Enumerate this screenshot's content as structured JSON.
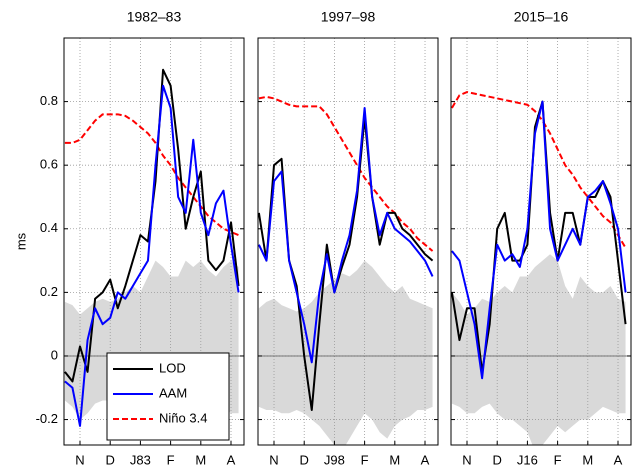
{
  "chart_data": [
    {
      "type": "line",
      "title": "1982–83",
      "ylabel": "ms",
      "x": [
        0.5,
        0.75,
        1,
        1.25,
        1.5,
        1.75,
        2,
        2.25,
        2.5,
        2.75,
        3,
        3.25,
        3.5,
        3.75,
        4,
        4.25,
        4.5,
        4.75,
        5,
        5.25,
        5.5,
        5.75,
        6,
        6.25
      ],
      "xlim": [
        0.47,
        6.43
      ],
      "xticks": [
        {
          "value": 1,
          "label": "N"
        },
        {
          "value": 2,
          "label": "D"
        },
        {
          "value": 3,
          "label": "J83"
        },
        {
          "value": 4,
          "label": "F"
        },
        {
          "value": 5,
          "label": "M"
        },
        {
          "value": 6,
          "label": "A"
        }
      ],
      "ylim": [
        -0.28,
        1.0
      ],
      "yticks": [
        -0.2,
        0,
        0.2,
        0.4,
        0.6,
        0.8
      ],
      "grid": true,
      "legend": "lower left",
      "band": {
        "color": "#d9d9d9",
        "upper": [
          0.17,
          0.16,
          0.13,
          0.15,
          0.17,
          0.18,
          0.17,
          0.18,
          0.2,
          0.22,
          0.2,
          0.25,
          0.3,
          0.28,
          0.25,
          0.25,
          0.3,
          0.28,
          0.3,
          0.27,
          0.25,
          0.28,
          0.3,
          0.28
        ],
        "lower": [
          -0.14,
          -0.16,
          -0.2,
          -0.18,
          -0.15,
          -0.14,
          -0.14,
          -0.14,
          -0.13,
          -0.14,
          -0.15,
          -0.15,
          -0.17,
          -0.18,
          -0.2,
          -0.22,
          -0.24,
          -0.22,
          -0.2,
          -0.18,
          -0.17,
          -0.16,
          -0.18,
          -0.18
        ]
      },
      "series": [
        {
          "name": "LOD",
          "color": "#000000",
          "values": [
            -0.05,
            -0.08,
            0.03,
            -0.05,
            0.18,
            0.2,
            0.24,
            0.15,
            0.22,
            0.3,
            0.38,
            0.36,
            0.55,
            0.9,
            0.85,
            0.65,
            0.4,
            0.5,
            0.58,
            0.3,
            0.27,
            0.3,
            0.42,
            0.22
          ]
        },
        {
          "name": "AAM",
          "color": "#0000ff",
          "values": [
            -0.08,
            -0.1,
            -0.22,
            0.05,
            0.15,
            0.1,
            0.12,
            0.2,
            0.18,
            0.22,
            0.26,
            0.3,
            0.6,
            0.85,
            0.78,
            0.5,
            0.45,
            0.68,
            0.45,
            0.38,
            0.48,
            0.52,
            0.35,
            0.2
          ]
        },
        {
          "name": "Niño 3.4",
          "color": "#ff0000",
          "dashed": true,
          "values": [
            0.67,
            0.67,
            0.68,
            0.71,
            0.74,
            0.76,
            0.76,
            0.76,
            0.755,
            0.74,
            0.72,
            0.7,
            0.67,
            0.63,
            0.6,
            0.56,
            0.53,
            0.5,
            0.47,
            0.44,
            0.42,
            0.4,
            0.39,
            0.38
          ]
        }
      ]
    },
    {
      "type": "line",
      "title": "1997–98",
      "x": [
        0.5,
        0.75,
        1,
        1.25,
        1.5,
        1.75,
        2,
        2.25,
        2.5,
        2.75,
        3,
        3.25,
        3.5,
        3.75,
        4,
        4.25,
        4.5,
        4.75,
        5,
        5.25,
        5.5,
        5.75,
        6,
        6.25
      ],
      "xlim": [
        0.47,
        6.43
      ],
      "xticks": [
        {
          "value": 1,
          "label": "N"
        },
        {
          "value": 2,
          "label": "D"
        },
        {
          "value": 3,
          "label": "J98"
        },
        {
          "value": 4,
          "label": "F"
        },
        {
          "value": 5,
          "label": "M"
        },
        {
          "value": 6,
          "label": "A"
        }
      ],
      "ylim": [
        -0.28,
        1.0
      ],
      "yticks": [
        -0.2,
        0,
        0.2,
        0.4,
        0.6,
        0.8
      ],
      "grid": true,
      "band": {
        "color": "#d9d9d9",
        "upper": [
          0.15,
          0.17,
          0.18,
          0.16,
          0.15,
          0.14,
          0.15,
          0.17,
          0.2,
          0.22,
          0.24,
          0.26,
          0.25,
          0.27,
          0.3,
          0.28,
          0.25,
          0.22,
          0.2,
          0.22,
          0.18,
          0.17,
          0.16,
          0.15
        ],
        "lower": [
          -0.16,
          -0.17,
          -0.17,
          -0.18,
          -0.18,
          -0.17,
          -0.18,
          -0.2,
          -0.22,
          -0.25,
          -0.28,
          -0.3,
          -0.26,
          -0.22,
          -0.18,
          -0.2,
          -0.24,
          -0.26,
          -0.22,
          -0.2,
          -0.19,
          -0.17,
          -0.17,
          -0.16
        ]
      },
      "series": [
        {
          "color": "#000000",
          "values": [
            0.45,
            0.3,
            0.6,
            0.62,
            0.3,
            0.22,
            0.0,
            -0.17,
            0.1,
            0.35,
            0.2,
            0.28,
            0.35,
            0.5,
            0.75,
            0.5,
            0.35,
            0.45,
            0.45,
            0.4,
            0.38,
            0.35,
            0.32,
            0.3
          ]
        },
        {
          "color": "#0000ff",
          "values": [
            0.35,
            0.3,
            0.55,
            0.58,
            0.3,
            0.2,
            0.1,
            -0.02,
            0.2,
            0.32,
            0.2,
            0.3,
            0.38,
            0.52,
            0.78,
            0.5,
            0.38,
            0.45,
            0.4,
            0.38,
            0.36,
            0.33,
            0.3,
            0.25
          ]
        },
        {
          "color": "#ff0000",
          "dashed": true,
          "values": [
            0.81,
            0.815,
            0.81,
            0.8,
            0.79,
            0.785,
            0.785,
            0.785,
            0.785,
            0.76,
            0.72,
            0.68,
            0.64,
            0.6,
            0.56,
            0.53,
            0.5,
            0.47,
            0.45,
            0.42,
            0.4,
            0.37,
            0.35,
            0.33
          ]
        }
      ]
    },
    {
      "type": "line",
      "title": "2015–16",
      "x": [
        0.5,
        0.75,
        1,
        1.25,
        1.5,
        1.75,
        2,
        2.25,
        2.5,
        2.75,
        3,
        3.25,
        3.5,
        3.75,
        4,
        4.25,
        4.5,
        4.75,
        5,
        5.25,
        5.5,
        5.75,
        6,
        6.25
      ],
      "xlim": [
        0.47,
        6.43
      ],
      "xticks": [
        {
          "value": 1,
          "label": "N"
        },
        {
          "value": 2,
          "label": "D"
        },
        {
          "value": 3,
          "label": "J16"
        },
        {
          "value": 4,
          "label": "F"
        },
        {
          "value": 5,
          "label": "M"
        },
        {
          "value": 6,
          "label": "A"
        }
      ],
      "ylim": [
        -0.28,
        1.0
      ],
      "yticks": [
        -0.2,
        0,
        0.2,
        0.4,
        0.6,
        0.8
      ],
      "grid": true,
      "band": {
        "color": "#d9d9d9",
        "upper": [
          0.2,
          0.17,
          0.13,
          0.15,
          0.18,
          0.17,
          0.2,
          0.22,
          0.2,
          0.25,
          0.25,
          0.28,
          0.3,
          0.32,
          0.3,
          0.22,
          0.18,
          0.25,
          0.22,
          0.2,
          0.2,
          0.22,
          0.18,
          0.17
        ],
        "lower": [
          -0.15,
          -0.16,
          -0.18,
          -0.18,
          -0.16,
          -0.15,
          -0.18,
          -0.2,
          -0.2,
          -0.22,
          -0.24,
          -0.3,
          -0.28,
          -0.25,
          -0.22,
          -0.24,
          -0.22,
          -0.2,
          -0.2,
          -0.18,
          -0.16,
          -0.17,
          -0.18,
          -0.18
        ]
      },
      "series": [
        {
          "color": "#000000",
          "values": [
            0.2,
            0.05,
            0.15,
            0.15,
            -0.05,
            0.1,
            0.4,
            0.45,
            0.3,
            0.3,
            0.35,
            0.72,
            0.8,
            0.45,
            0.3,
            0.45,
            0.45,
            0.35,
            0.5,
            0.5,
            0.55,
            0.5,
            0.3,
            0.1
          ]
        },
        {
          "color": "#0000ff",
          "values": [
            0.33,
            0.3,
            0.2,
            0.1,
            -0.07,
            0.15,
            0.35,
            0.3,
            0.32,
            0.28,
            0.4,
            0.7,
            0.8,
            0.4,
            0.3,
            0.35,
            0.4,
            0.35,
            0.5,
            0.52,
            0.55,
            0.48,
            0.4,
            0.2
          ]
        },
        {
          "color": "#ff0000",
          "dashed": true,
          "values": [
            0.78,
            0.82,
            0.83,
            0.825,
            0.82,
            0.815,
            0.81,
            0.805,
            0.8,
            0.795,
            0.79,
            0.77,
            0.74,
            0.7,
            0.65,
            0.6,
            0.57,
            0.53,
            0.5,
            0.47,
            0.44,
            0.42,
            0.38,
            0.34
          ]
        }
      ]
    }
  ]
}
